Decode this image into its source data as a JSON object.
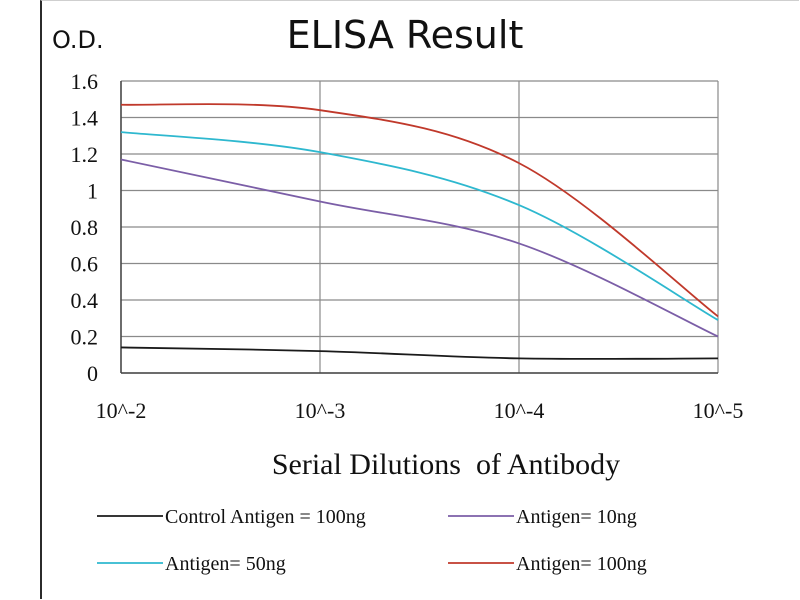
{
  "chart_data": {
    "type": "line",
    "title": "ELISA Result",
    "ylabel": "O.D.",
    "xlabel": "Serial Dilutions  of Antibody",
    "categories": [
      "10^-2",
      "10^-3",
      "10^-4",
      "10^-5"
    ],
    "yticks": [
      "0",
      "0.2",
      "0.4",
      "0.6",
      "0.8",
      "1",
      "1.2",
      "1.4",
      "1.6"
    ],
    "ylim": [
      0,
      1.6
    ],
    "grid": true,
    "legend_position": "bottom",
    "series": [
      {
        "name": "Control Antigen = 100ng",
        "color": "#1a1a1a",
        "values": [
          0.14,
          0.12,
          0.08,
          0.08
        ]
      },
      {
        "name": "Antigen= 10ng",
        "color": "#7b5ea7",
        "values": [
          1.17,
          0.94,
          0.71,
          0.2
        ]
      },
      {
        "name": "Antigen= 50ng",
        "color": "#2eb8cf",
        "values": [
          1.32,
          1.21,
          0.92,
          0.29
        ]
      },
      {
        "name": "Antigen= 100ng",
        "color": "#c0392b",
        "values": [
          1.47,
          1.44,
          1.15,
          0.31
        ]
      }
    ]
  }
}
